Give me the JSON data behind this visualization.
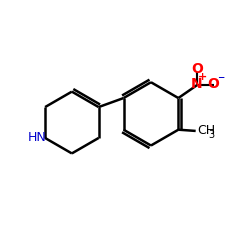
{
  "background_color": "#ffffff",
  "bond_color": "#000000",
  "nh_color": "#0000cc",
  "no2_n_color": "#ff0000",
  "no2_o_color": "#ff0000",
  "no2_charge_color": "#0000cc",
  "line_width": 1.8,
  "figsize": [
    2.5,
    2.5
  ],
  "dpi": 100,
  "xlim": [
    0,
    10
  ],
  "ylim": [
    0,
    10
  ]
}
